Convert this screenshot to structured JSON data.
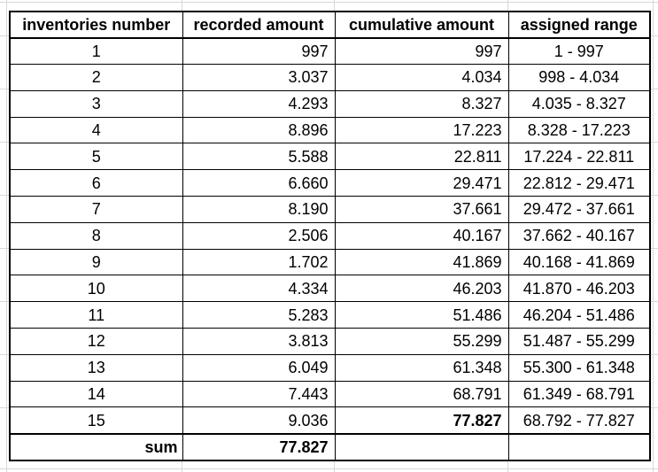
{
  "chart_data": {
    "type": "table",
    "columns": [
      "inventories number",
      "recorded amount",
      "cumulative amount",
      "assigned range"
    ],
    "rows": [
      [
        "1",
        "997",
        "997",
        "1 - 997"
      ],
      [
        "2",
        "3.037",
        "4.034",
        "998 - 4.034"
      ],
      [
        "3",
        "4.293",
        "8.327",
        "4.035 - 8.327"
      ],
      [
        "4",
        "8.896",
        "17.223",
        "8.328 - 17.223"
      ],
      [
        "5",
        "5.588",
        "22.811",
        "17.224 - 22.811"
      ],
      [
        "6",
        "6.660",
        "29.471",
        "22.812 - 29.471"
      ],
      [
        "7",
        "8.190",
        "37.661",
        "29.472 - 37.661"
      ],
      [
        "8",
        "2.506",
        "40.167",
        "37.662 - 40.167"
      ],
      [
        "9",
        "1.702",
        "41.869",
        "40.168 - 41.869"
      ],
      [
        "10",
        "4.334",
        "46.203",
        "41.870 - 46.203"
      ],
      [
        "11",
        "5.283",
        "51.486",
        "46.204 - 51.486"
      ],
      [
        "12",
        "3.813",
        "55.299",
        "51.487 - 55.299"
      ],
      [
        "13",
        "6.049",
        "61.348",
        "55.300 - 61.348"
      ],
      [
        "14",
        "7.443",
        "68.791",
        "61.349 - 68.791"
      ],
      [
        "15",
        "9.036",
        "77.827",
        "68.792 - 77.827"
      ]
    ],
    "footer": [
      "sum",
      "77.827",
      "",
      ""
    ],
    "number_format": "dot used as thousands separator",
    "emphasis": {
      "last_row_cumulative_bold": true,
      "sum_row_bold": true
    },
    "colors": {
      "table_border": "#000000",
      "text": "#000000",
      "background": "#ffffff",
      "spreadsheet_gridline": "#d8d8d8"
    }
  }
}
